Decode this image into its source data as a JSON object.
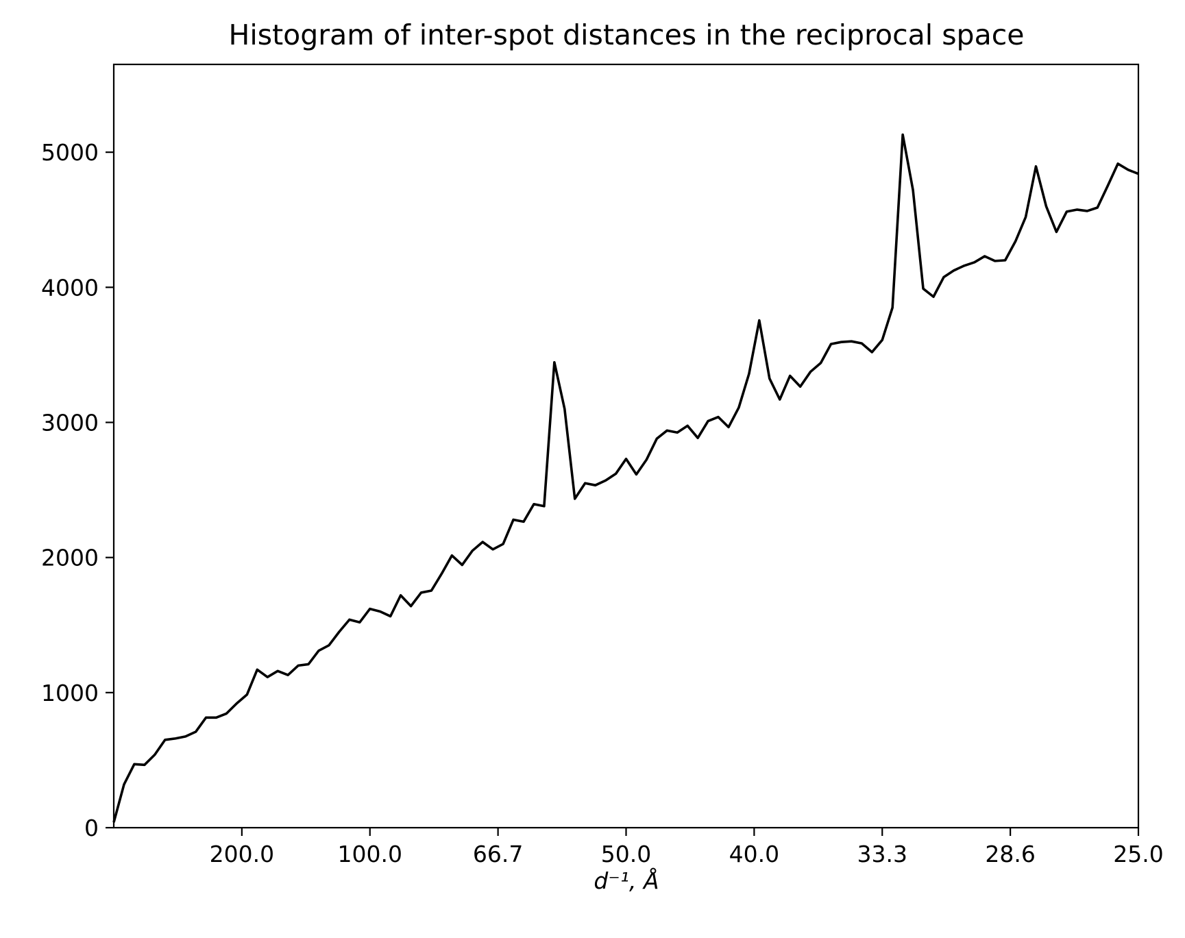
{
  "chart_data": {
    "type": "line",
    "title": "Histogram of inter-spot distances in the reciprocal space",
    "xlabel": "d⁻¹, Å",
    "ylabel": "",
    "x_scale": "reciprocal",
    "xlim": [
      0.0,
      0.04
    ],
    "ylim": [
      0,
      5650
    ],
    "grid": false,
    "legend": "none",
    "xticks": [
      {
        "value": 0.005,
        "label": "200.0"
      },
      {
        "value": 0.01,
        "label": "100.0"
      },
      {
        "value": 0.015,
        "label": "66.7"
      },
      {
        "value": 0.02,
        "label": "50.0"
      },
      {
        "value": 0.025,
        "label": "40.0"
      },
      {
        "value": 0.03,
        "label": "33.3"
      },
      {
        "value": 0.035,
        "label": "28.6"
      },
      {
        "value": 0.04,
        "label": "25.0"
      }
    ],
    "yticks": [
      {
        "value": 0,
        "label": "0"
      },
      {
        "value": 1000,
        "label": "1000"
      },
      {
        "value": 2000,
        "label": "2000"
      },
      {
        "value": 3000,
        "label": "3000"
      },
      {
        "value": 4000,
        "label": "4000"
      },
      {
        "value": 5000,
        "label": "5000"
      }
    ],
    "colors": {
      "line": "#000000",
      "axes": "#000000",
      "background": "#ffffff"
    },
    "series": [
      {
        "x": [
          0.0,
          0.0004,
          0.0008,
          0.0012,
          0.0016,
          0.002,
          0.0024,
          0.0028,
          0.0032,
          0.0036,
          0.004,
          0.0044,
          0.0048,
          0.0052,
          0.0056,
          0.006,
          0.0064,
          0.0068,
          0.0072,
          0.0076,
          0.008,
          0.0084,
          0.0088,
          0.0092,
          0.0096,
          0.01,
          0.0104,
          0.0108,
          0.0112,
          0.0116,
          0.012,
          0.0124,
          0.0128,
          0.0132,
          0.0136,
          0.014,
          0.0144,
          0.0148,
          0.0152,
          0.0156,
          0.016,
          0.0164,
          0.0168,
          0.0172,
          0.0176,
          0.018,
          0.0184,
          0.0188,
          0.0192,
          0.0196,
          0.02,
          0.0204,
          0.0208,
          0.0212,
          0.0216,
          0.022,
          0.0224,
          0.0228,
          0.0232,
          0.0236,
          0.024,
          0.0244,
          0.0248,
          0.0252,
          0.0256,
          0.026,
          0.0264,
          0.0268,
          0.0272,
          0.0276,
          0.028,
          0.0284,
          0.0288,
          0.0292,
          0.0296,
          0.03,
          0.0304,
          0.0308,
          0.0312,
          0.0316,
          0.032,
          0.0324,
          0.0328,
          0.0332,
          0.0336,
          0.034,
          0.0344,
          0.0348,
          0.0352,
          0.0356,
          0.036,
          0.0364,
          0.0368,
          0.0372,
          0.0376,
          0.038,
          0.0384,
          0.0388,
          0.0392,
          0.0396,
          0.04
        ],
        "y": [
          40,
          320,
          470,
          465,
          540,
          650,
          660,
          675,
          710,
          815,
          815,
          845,
          920,
          985,
          1170,
          1115,
          1160,
          1130,
          1200,
          1210,
          1310,
          1350,
          1450,
          1540,
          1520,
          1620,
          1600,
          1565,
          1720,
          1640,
          1740,
          1755,
          1880,
          2015,
          1945,
          2050,
          2115,
          2060,
          2100,
          2280,
          2265,
          2395,
          2380,
          3445,
          3100,
          2435,
          2550,
          2535,
          2570,
          2620,
          2730,
          2615,
          2725,
          2880,
          2940,
          2925,
          2975,
          2885,
          3010,
          3040,
          2965,
          3110,
          3360,
          3755,
          3325,
          3170,
          3345,
          3265,
          3375,
          3440,
          3580,
          3595,
          3600,
          3585,
          3520,
          3610,
          3850,
          5130,
          4720,
          3990,
          3930,
          4075,
          4125,
          4160,
          4185,
          4230,
          4195,
          4200,
          4340,
          4520,
          4895,
          4600,
          4410,
          4560,
          4575,
          4565,
          4590,
          4750,
          4915,
          4870,
          4840
        ]
      }
    ]
  }
}
